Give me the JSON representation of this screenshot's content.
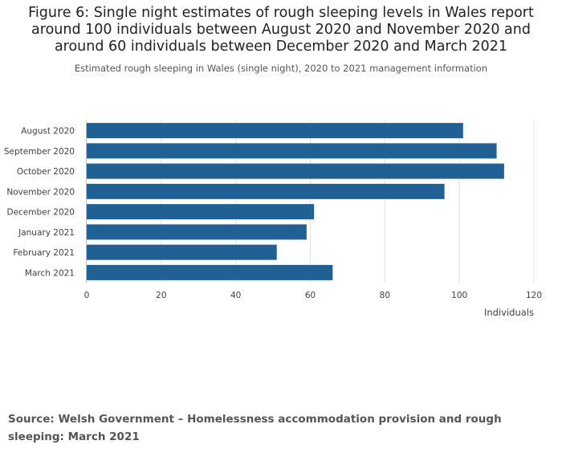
{
  "title": "Figure 6: Single night estimates of rough sleeping levels in Wales report around 100 individuals between August 2020 and November 2020 and around 60 individuals between December 2020 and March 2021",
  "subtitle": "Estimated rough sleeping in Wales (single night), 2020 to 2021 management information",
  "source": "Source: Welsh Government – Homelessness accommodation provision and rough sleeping: March 2021",
  "colors": {
    "bar": "#206095",
    "grid": "#e2e2e2",
    "axis": "#bebebe",
    "text": "#414042"
  },
  "chart_data": {
    "type": "bar",
    "orientation": "horizontal",
    "categories": [
      "August 2020",
      "September 2020",
      "October 2020",
      "November 2020",
      "December 2020",
      "January 2021",
      "February 2021",
      "March 2021"
    ],
    "values": [
      101,
      110,
      112,
      96,
      61,
      59,
      51,
      66
    ],
    "xlabel": "Individuals",
    "ylabel": "",
    "xlim": [
      0,
      120
    ],
    "xticks": [
      0,
      20,
      40,
      60,
      80,
      100,
      120
    ],
    "grid": true
  }
}
